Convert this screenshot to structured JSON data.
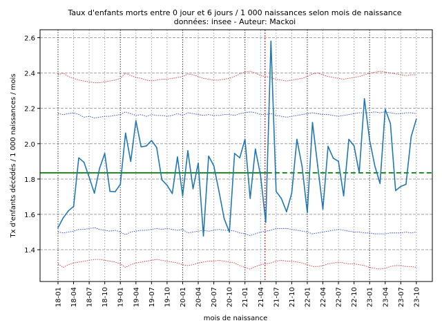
{
  "chart_data": {
    "type": "line",
    "title": "Taux d'enfants morts entre 0 jour et 6 jours / 1 000 naissances selon mois de naissance",
    "subtitle": "données: insee - Auteur: Mackoi",
    "xlabel": "mois de naissance",
    "ylabel": "Tx d'enfants décédés / 1 000 naissances / mois",
    "ylim": [
      1.22,
      2.645
    ],
    "yticks": [
      1.4,
      1.6,
      1.8,
      2.0,
      2.2,
      2.4,
      2.6
    ],
    "ytick_labels": [
      "1.4",
      "1.6",
      "1.8",
      "2.0",
      "2.2",
      "2.4",
      "2.6"
    ],
    "xtick_labels": [
      "18-01",
      "18-04",
      "18-07",
      "18-10",
      "19-01",
      "19-04",
      "19-07",
      "19-10",
      "20-01",
      "20-04",
      "20-07",
      "20-10",
      "21-01",
      "21-04",
      "21-07",
      "21-10",
      "22-01",
      "22-04",
      "22-07",
      "22-10",
      "23-01",
      "23-04",
      "23-07",
      "23-10"
    ],
    "start_month": "2018-01",
    "year_start_lines": [
      0,
      12,
      24,
      36,
      48,
      60
    ],
    "event_line_index": 40,
    "mean_line": 1.835,
    "grid": true,
    "colors": {
      "main": "#1f77b4",
      "mean": "#008000",
      "inner_band": "#1f3fd6",
      "outer_band": "#e03030",
      "event": "#e00000",
      "grid": "#b0b0b0"
    },
    "series": [
      {
        "name": "taux mensuel",
        "style": "solid",
        "values": [
          1.525,
          1.58,
          1.62,
          1.645,
          1.92,
          1.895,
          1.81,
          1.72,
          1.86,
          1.945,
          1.73,
          1.728,
          1.77,
          2.06,
          1.9,
          2.13,
          1.982,
          1.987,
          2.018,
          1.978,
          1.795,
          1.765,
          1.718,
          1.925,
          1.705,
          1.96,
          1.745,
          1.89,
          1.478,
          1.93,
          1.875,
          1.73,
          1.575,
          1.5,
          1.945,
          1.92,
          2.025,
          1.69,
          1.97,
          1.82,
          1.555,
          2.58,
          1.73,
          1.69,
          1.615,
          1.72,
          2.025,
          1.87,
          1.61,
          2.12,
          1.875,
          1.63,
          1.985,
          1.918,
          1.9,
          1.705,
          2.025,
          1.988,
          1.835,
          2.255,
          2.02,
          1.875,
          1.775,
          2.195,
          2.115,
          1.735,
          1.758,
          1.77,
          2.04,
          2.14
        ]
      },
      {
        "name": "moyenne",
        "style": "long-dash",
        "values": [
          1.835
        ]
      },
      {
        "name": "limite haute interne",
        "style": "dotted",
        "values": [
          2.17,
          2.165,
          2.17,
          2.175,
          2.165,
          2.15,
          2.155,
          2.145,
          2.15,
          2.155,
          2.155,
          2.16,
          2.165,
          2.18,
          2.17,
          2.16,
          2.165,
          2.155,
          2.165,
          2.16,
          2.16,
          2.155,
          2.16,
          2.17,
          2.16,
          2.175,
          2.17,
          2.165,
          2.16,
          2.165,
          2.16,
          2.16,
          2.165,
          2.165,
          2.16,
          2.17,
          2.175,
          2.18,
          2.175,
          2.165,
          2.165,
          2.17,
          2.16,
          2.155,
          2.15,
          2.155,
          2.16,
          2.165,
          2.17,
          2.175,
          2.17,
          2.165,
          2.165,
          2.16,
          2.155,
          2.16,
          2.165,
          2.17,
          2.175,
          2.175,
          2.175,
          2.18,
          2.175,
          2.18,
          2.175,
          2.17,
          2.17,
          2.175,
          2.175,
          2.17
        ]
      },
      {
        "name": "limite basse interne",
        "style": "dotted",
        "values": [
          1.5,
          1.495,
          1.5,
          1.505,
          1.515,
          1.515,
          1.52,
          1.525,
          1.515,
          1.51,
          1.505,
          1.51,
          1.5,
          1.485,
          1.5,
          1.505,
          1.51,
          1.51,
          1.515,
          1.52,
          1.515,
          1.52,
          1.515,
          1.51,
          1.515,
          1.495,
          1.5,
          1.505,
          1.51,
          1.505,
          1.51,
          1.515,
          1.51,
          1.51,
          1.505,
          1.495,
          1.49,
          1.48,
          1.49,
          1.5,
          1.505,
          1.51,
          1.52,
          1.52,
          1.52,
          1.515,
          1.51,
          1.505,
          1.5,
          1.49,
          1.495,
          1.5,
          1.505,
          1.51,
          1.515,
          1.51,
          1.505,
          1.5,
          1.5,
          1.495,
          1.495,
          1.49,
          1.49,
          1.49,
          1.495,
          1.495,
          1.495,
          1.5,
          1.495,
          1.5
        ]
      },
      {
        "name": "limite haute externe",
        "style": "dotted",
        "values": [
          2.39,
          2.4,
          2.38,
          2.37,
          2.36,
          2.355,
          2.35,
          2.345,
          2.345,
          2.35,
          2.355,
          2.36,
          2.37,
          2.4,
          2.385,
          2.375,
          2.37,
          2.36,
          2.355,
          2.36,
          2.365,
          2.365,
          2.37,
          2.375,
          2.38,
          2.395,
          2.39,
          2.38,
          2.37,
          2.365,
          2.36,
          2.36,
          2.365,
          2.37,
          2.38,
          2.395,
          2.405,
          2.41,
          2.4,
          2.385,
          2.38,
          2.375,
          2.365,
          2.36,
          2.355,
          2.36,
          2.365,
          2.37,
          2.38,
          2.395,
          2.4,
          2.39,
          2.38,
          2.375,
          2.37,
          2.365,
          2.37,
          2.375,
          2.38,
          2.39,
          2.4,
          2.405,
          2.41,
          2.405,
          2.4,
          2.395,
          2.39,
          2.385,
          2.39,
          2.39
        ]
      },
      {
        "name": "limite basse externe",
        "style": "dotted",
        "values": [
          1.32,
          1.3,
          1.315,
          1.325,
          1.33,
          1.335,
          1.34,
          1.345,
          1.345,
          1.34,
          1.335,
          1.33,
          1.32,
          1.3,
          1.315,
          1.325,
          1.33,
          1.335,
          1.34,
          1.345,
          1.34,
          1.335,
          1.33,
          1.325,
          1.315,
          1.31,
          1.315,
          1.325,
          1.33,
          1.335,
          1.335,
          1.34,
          1.335,
          1.33,
          1.325,
          1.31,
          1.3,
          1.29,
          1.305,
          1.315,
          1.32,
          1.325,
          1.335,
          1.34,
          1.335,
          1.335,
          1.33,
          1.325,
          1.315,
          1.305,
          1.305,
          1.31,
          1.32,
          1.325,
          1.33,
          1.325,
          1.32,
          1.32,
          1.315,
          1.31,
          1.3,
          1.295,
          1.29,
          1.295,
          1.305,
          1.31,
          1.31,
          1.305,
          1.305,
          1.3
        ]
      }
    ]
  }
}
